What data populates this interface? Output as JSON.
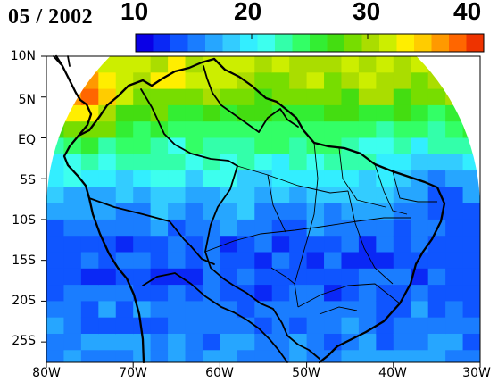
{
  "title": "05 / 2002",
  "colorbar": {
    "ticks": [
      "10",
      "20",
      "30",
      "40"
    ],
    "tick_values": [
      10,
      20,
      30,
      40
    ],
    "range": [
      10,
      40
    ],
    "colors": [
      "#0a00e6",
      "#0a28f5",
      "#0f55ff",
      "#1a7dff",
      "#26a6ff",
      "#33ccff",
      "#33eeff",
      "#3dffee",
      "#33ffaa",
      "#33ff66",
      "#33ee33",
      "#44dd11",
      "#77dd00",
      "#aadd00",
      "#ccee00",
      "#ffee00",
      "#ffcc00",
      "#ff9900",
      "#ff6600",
      "#ee3300"
    ]
  },
  "axes": {
    "lat_labels": [
      "10N",
      "5N",
      "EQ",
      "5S",
      "10S",
      "15S",
      "20S",
      "25S"
    ],
    "lat_values": [
      10,
      5,
      0,
      -5,
      -10,
      -15,
      -20,
      -25
    ],
    "lon_labels": [
      "80W",
      "70W",
      "60W",
      "50W",
      "40W",
      "30W"
    ],
    "lon_values": [
      -80,
      -70,
      -60,
      -50,
      -40,
      -30
    ],
    "lat_range": [
      -27.5,
      10
    ],
    "lon_range": [
      -80,
      -30
    ]
  },
  "data_field": {
    "lat_bands": [
      {
        "lat": 7.5,
        "v": 31
      },
      {
        "lat": 2.5,
        "v": 26
      },
      {
        "lat": -2.5,
        "v": 22
      },
      {
        "lat": -7.5,
        "v": 17
      },
      {
        "lat": -12.5,
        "v": 14
      },
      {
        "lat": -17.5,
        "v": 14
      },
      {
        "lat": -22.5,
        "v": 15
      },
      {
        "lat": -26.5,
        "v": 16
      }
    ],
    "hotspots": [
      {
        "lon": -75.5,
        "lat": 4.5,
        "v": 37
      },
      {
        "lon": -63.5,
        "lat": 6.5,
        "v": 32
      },
      {
        "lon": -56,
        "lat": 4.5,
        "v": 27
      },
      {
        "lon": -38,
        "lat": -2,
        "v": 20
      },
      {
        "lon": -34,
        "lat": -6,
        "v": 15
      }
    ]
  }
}
